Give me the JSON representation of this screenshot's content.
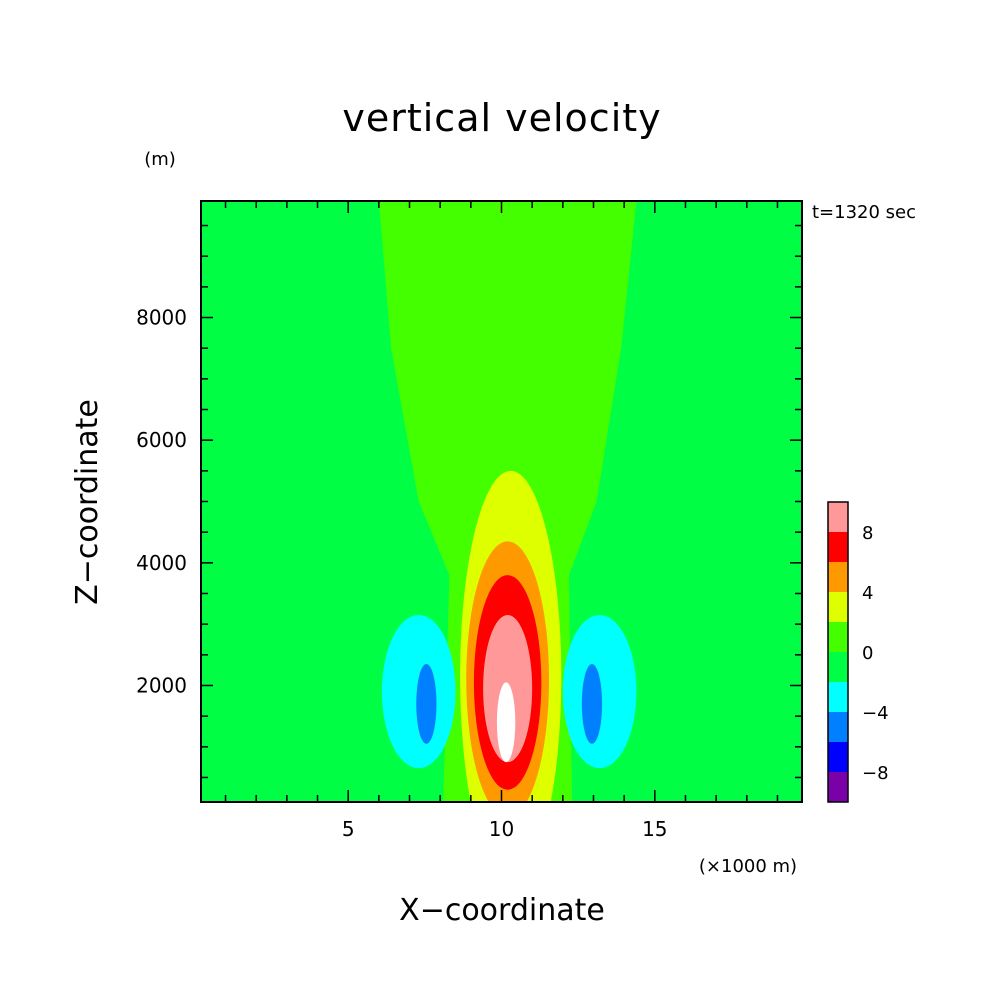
{
  "chart_data": {
    "type": "contour",
    "title": "vertical velocity",
    "xlabel": "X−coordinate",
    "ylabel": "Z−coordinate",
    "x_unit": "(×1000 m)",
    "y_unit": "(m)",
    "time_label": "t=1320 sec",
    "xlim": [
      0.2,
      19.8
    ],
    "ylim": [
      100,
      9900
    ],
    "x_ticks": [
      {
        "value": 5,
        "label": "5"
      },
      {
        "value": 10,
        "label": "10"
      },
      {
        "value": 15,
        "label": "15"
      }
    ],
    "y_ticks": [
      {
        "value": 2000,
        "label": "2000"
      },
      {
        "value": 4000,
        "label": "4000"
      },
      {
        "value": 6000,
        "label": "6000"
      },
      {
        "value": 8000,
        "label": "8000"
      }
    ],
    "colorbar": {
      "levels": [
        -10,
        -8,
        -6,
        -4,
        -2,
        0,
        2,
        4,
        6,
        8,
        10
      ],
      "colors": [
        "#7a00a8",
        "#0000ff",
        "#0080ff",
        "#00ffff",
        "#00ff44",
        "#44ff00",
        "#ddff00",
        "#ff9900",
        "#ff0000",
        "#ff9999"
      ],
      "labels": [
        {
          "value": -8,
          "label": "−8"
        },
        {
          "value": -4,
          "label": "−4"
        },
        {
          "value": 0,
          "label": "0"
        },
        {
          "value": 4,
          "label": "4"
        },
        {
          "value": 8,
          "label": "8"
        }
      ]
    },
    "regions": [
      {
        "level": "0 to 2",
        "color": "#44ff00",
        "shape": "plume",
        "points": [
          [
            6.0,
            9900
          ],
          [
            14.4,
            9900
          ],
          [
            13.9,
            7500
          ],
          [
            13.1,
            5000
          ],
          [
            12.2,
            3800
          ],
          [
            12.3,
            100
          ],
          [
            8.1,
            100
          ],
          [
            8.3,
            3800
          ],
          [
            7.3,
            5000
          ],
          [
            6.4,
            7500
          ]
        ]
      },
      {
        "level": "2 to 4",
        "color": "#ddff00",
        "shape": "ellipse",
        "cx": 10.3,
        "cz": 2150,
        "rx": 1.65,
        "rz": 3350
      },
      {
        "level": "4 to 6",
        "color": "#ff9900",
        "shape": "ellipse",
        "cx": 10.2,
        "cz": 2100,
        "rx": 1.35,
        "rz": 2250
      },
      {
        "level": "6 to 8",
        "color": "#ff0000",
        "shape": "ellipse",
        "cx": 10.2,
        "cz": 2050,
        "rx": 1.1,
        "rz": 1750
      },
      {
        "level": "8 to 10",
        "color": "#ff9999",
        "shape": "ellipse",
        "cx": 10.2,
        "cz": 1950,
        "rx": 0.8,
        "rz": 1200
      },
      {
        "level": ">10",
        "color": "#ffffff",
        "shape": "ellipse",
        "cx": 10.15,
        "cz": 1400,
        "rx": 0.3,
        "rz": 650
      },
      {
        "level": "-4 to -2",
        "color": "#00ffff",
        "shape": "ellipse",
        "cx": 7.3,
        "cz": 1900,
        "rx": 1.2,
        "rz": 1250
      },
      {
        "level": "-4 to -2",
        "color": "#00ffff",
        "shape": "ellipse",
        "cx": 13.2,
        "cz": 1900,
        "rx": 1.2,
        "rz": 1250
      },
      {
        "level": "-6 to -4",
        "color": "#0080ff",
        "shape": "ellipse",
        "cx": 7.55,
        "cz": 1700,
        "rx": 0.33,
        "rz": 650
      },
      {
        "level": "-6 to -4",
        "color": "#0080ff",
        "shape": "ellipse",
        "cx": 12.95,
        "cz": 1700,
        "rx": 0.33,
        "rz": 650
      }
    ],
    "background_level": "-2 to 0",
    "background_color": "#00ff44"
  }
}
